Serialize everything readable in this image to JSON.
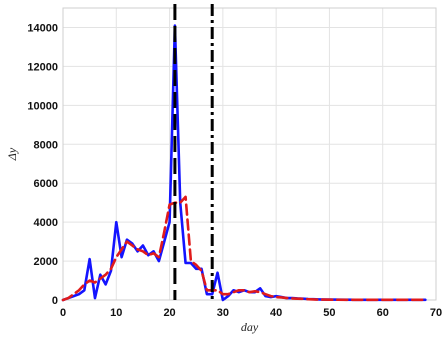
{
  "chart_data": {
    "type": "line",
    "title": "",
    "xlabel": "day",
    "ylabel": "Δy",
    "xlim": [
      0,
      70
    ],
    "ylim": [
      0,
      15000
    ],
    "x_ticks": [
      0,
      10,
      20,
      30,
      40,
      50,
      60,
      70
    ],
    "y_ticks": [
      0,
      2000,
      4000,
      6000,
      8000,
      10000,
      12000,
      14000
    ],
    "grid": true,
    "vertical_lines": [
      {
        "x": 21,
        "color": "#000000",
        "style": "dashed"
      },
      {
        "x": 28,
        "color": "#000000",
        "style": "dash-dot"
      }
    ],
    "series": [
      {
        "color": "#1414ff",
        "style": "solid",
        "x": [
          0,
          1,
          2,
          3,
          4,
          5,
          6,
          7,
          8,
          9,
          10,
          11,
          12,
          13,
          14,
          15,
          16,
          17,
          18,
          19,
          20,
          21,
          22,
          23,
          24,
          25,
          26,
          27,
          28,
          29,
          30,
          31,
          32,
          33,
          34,
          35,
          36,
          37,
          38,
          39,
          40,
          41,
          42,
          43,
          44,
          45,
          46,
          47,
          48,
          49,
          50,
          55,
          60,
          65,
          68
        ],
        "y": [
          0,
          100,
          200,
          300,
          500,
          2100,
          100,
          1300,
          800,
          1500,
          4000,
          2200,
          3100,
          2900,
          2500,
          2800,
          2300,
          2500,
          2000,
          3000,
          4000,
          14100,
          5000,
          1900,
          1900,
          1600,
          1600,
          300,
          300,
          1400,
          0,
          200,
          500,
          400,
          500,
          400,
          400,
          600,
          200,
          150,
          200,
          150,
          100,
          100,
          80,
          70,
          50,
          40,
          30,
          20,
          20,
          10,
          10,
          10,
          10
        ]
      },
      {
        "color": "#e01b1b",
        "style": "dashed",
        "x": [
          0,
          1,
          2,
          3,
          4,
          5,
          6,
          7,
          8,
          9,
          10,
          11,
          12,
          13,
          14,
          15,
          16,
          17,
          18,
          19,
          20,
          21,
          22,
          23,
          24,
          25,
          26,
          27,
          28,
          29,
          30,
          31,
          32,
          33,
          34,
          35,
          36,
          37,
          38,
          39,
          40,
          41,
          42,
          43,
          44,
          45,
          46,
          47,
          48,
          49,
          50,
          55,
          60,
          65,
          68
        ],
        "y": [
          0,
          100,
          300,
          500,
          800,
          1000,
          900,
          1100,
          1300,
          1600,
          2200,
          2600,
          3000,
          2800,
          2600,
          2500,
          2300,
          2400,
          2200,
          3500,
          4900,
          5000,
          5000,
          5300,
          2000,
          1800,
          1500,
          500,
          500,
          500,
          300,
          300,
          400,
          500,
          500,
          400,
          450,
          400,
          300,
          200,
          150,
          130,
          100,
          80,
          70,
          60,
          40,
          30,
          20,
          20,
          15,
          10,
          10,
          10,
          10
        ]
      }
    ]
  }
}
